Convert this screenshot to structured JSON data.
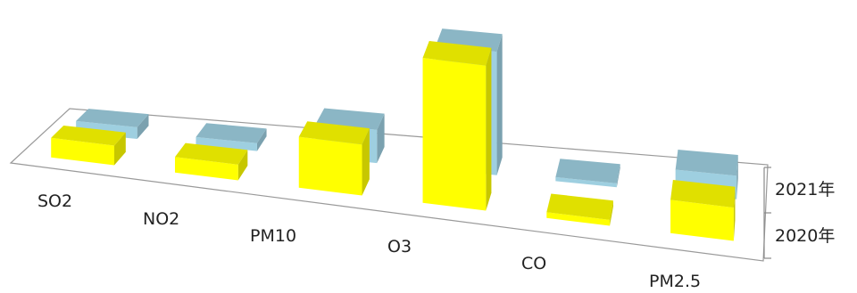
{
  "chart_data": {
    "type": "bar",
    "style": "3d-column",
    "categories": [
      "SO2",
      "NO2",
      "PM10",
      "O3",
      "CO",
      "PM2.5"
    ],
    "series": [
      {
        "name": "2020年",
        "color": "#ffff00",
        "values": [
          10,
          8,
          26,
          74,
          3,
          17
        ]
      },
      {
        "name": "2021年",
        "color": "#9ecfe0",
        "values": [
          6,
          4,
          17,
          63,
          2,
          12
        ]
      }
    ],
    "grid": false,
    "legend_placement": "right-axis"
  }
}
